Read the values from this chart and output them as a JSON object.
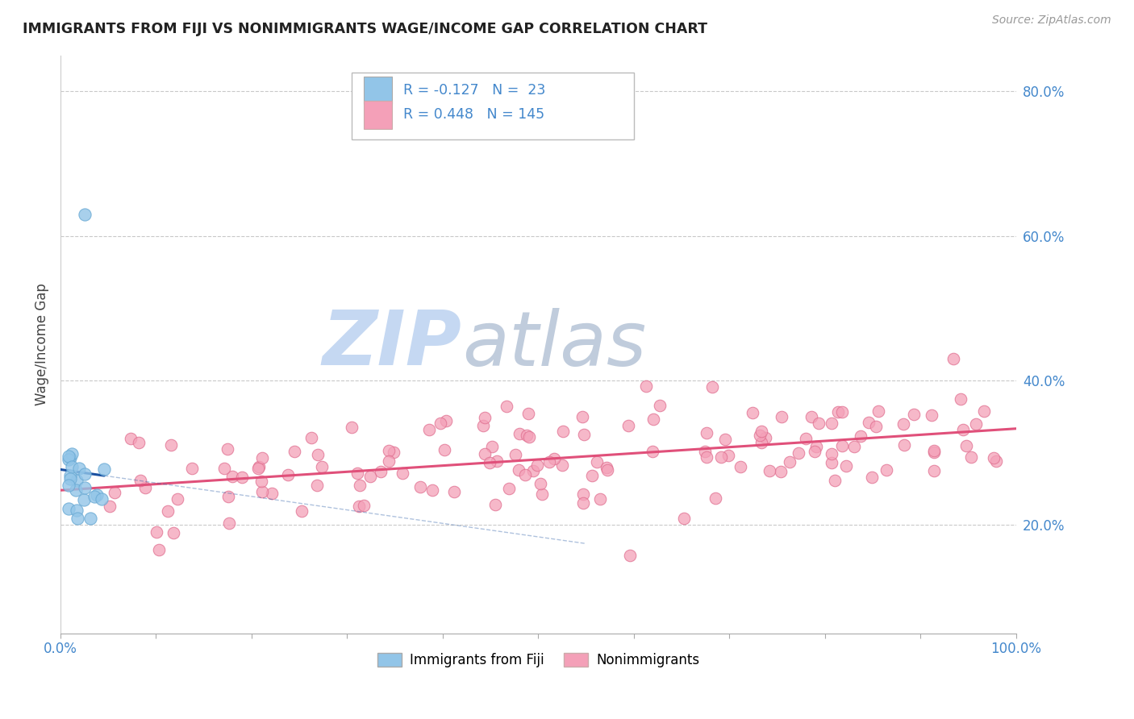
{
  "title": "IMMIGRANTS FROM FIJI VS NONIMMIGRANTS WAGE/INCOME GAP CORRELATION CHART",
  "source": "Source: ZipAtlas.com",
  "ylabel": "Wage/Income Gap",
  "xlim": [
    0.0,
    1.0
  ],
  "ylim": [
    0.05,
    0.85
  ],
  "y_tick_right_vals": [
    0.2,
    0.4,
    0.6,
    0.8
  ],
  "fiji_R": -0.127,
  "fiji_N": 23,
  "nonimm_R": 0.448,
  "nonimm_N": 145,
  "fiji_color": "#92C5E8",
  "fiji_edge_color": "#6AAAD4",
  "fiji_line_color": "#1A50A0",
  "nonimm_color": "#F4A0B8",
  "nonimm_edge_color": "#E07090",
  "nonimm_line_color": "#E0507A",
  "watermark_zip_color": "#C0D4F0",
  "watermark_atlas_color": "#C0D4E8",
  "background_color": "#FFFFFF",
  "grid_color": "#BBBBBB",
  "axis_color": "#4488CC",
  "title_color": "#222222",
  "ylabel_color": "#444444"
}
